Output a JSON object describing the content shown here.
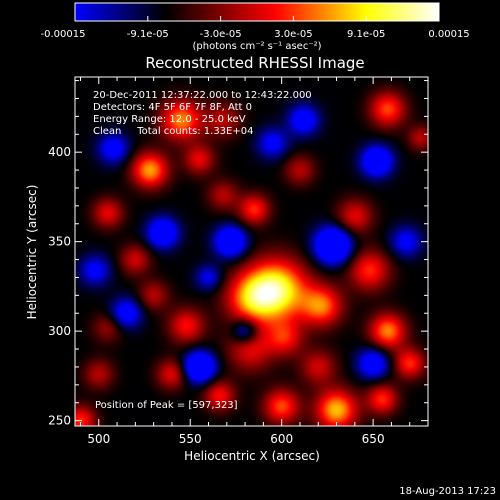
{
  "chart_data": {
    "type": "heatmap",
    "title": "Reconstructed RHESSI Image",
    "xlabel": "Heliocentric X (arcsec)",
    "ylabel": "Heliocentric Y (arcsec)",
    "xlim": [
      487,
      680
    ],
    "ylim": [
      247,
      442
    ],
    "x_ticks": [
      500,
      550,
      600,
      650
    ],
    "y_ticks": [
      250,
      300,
      350,
      400
    ],
    "colorbar": {
      "min": -0.00015,
      "max": 0.00015,
      "tick_labels": [
        "-0.00015",
        "-9.1e-05",
        "-3.0e-05",
        "3.0e-05",
        "9.1e-05",
        "0.00015"
      ],
      "unit_label": "(photons cm⁻² s⁻¹ asec⁻²)",
      "colormap": [
        "#0000ff",
        "#000000",
        "#ff0000",
        "#ffff00",
        "#ffffff"
      ]
    },
    "annotations": {
      "time_range": "20-Dec-2011 12:37:22.000 to 12:43:22.000",
      "detectors": "Detectors: 4F 5F 6F 7F 8F, Att 0",
      "energy": "Energy Range: 12.0 - 25.0 keV",
      "method": "Clean     Total counts: 1.33E+04",
      "peak": "Position of Peak = [597,323]"
    },
    "peak": {
      "x": 597,
      "y": 323
    },
    "sources": [
      {
        "x": 597,
        "y": 323,
        "amp": 1.0,
        "sigma": 12
      },
      {
        "x": 583,
        "y": 318,
        "amp": 0.55,
        "sigma": 10
      },
      {
        "x": 622,
        "y": 314,
        "amp": 0.65,
        "sigma": 8
      },
      {
        "x": 548,
        "y": 303,
        "amp": 0.5,
        "sigma": 7
      },
      {
        "x": 583,
        "y": 290,
        "amp": 0.45,
        "sigma": 9
      },
      {
        "x": 545,
        "y": 418,
        "amp": 0.7,
        "sigma": 8
      },
      {
        "x": 528,
        "y": 390,
        "amp": 0.75,
        "sigma": 7
      },
      {
        "x": 568,
        "y": 418,
        "amp": 0.35,
        "sigma": 7
      },
      {
        "x": 555,
        "y": 396,
        "amp": 0.45,
        "sigma": 6
      },
      {
        "x": 568,
        "y": 376,
        "amp": 0.35,
        "sigma": 6
      },
      {
        "x": 585,
        "y": 368,
        "amp": 0.55,
        "sigma": 6
      },
      {
        "x": 610,
        "y": 390,
        "amp": 0.35,
        "sigma": 6
      },
      {
        "x": 640,
        "y": 364,
        "amp": 0.45,
        "sigma": 7
      },
      {
        "x": 658,
        "y": 424,
        "amp": 0.6,
        "sigma": 7
      },
      {
        "x": 505,
        "y": 366,
        "amp": 0.45,
        "sigma": 6
      },
      {
        "x": 520,
        "y": 340,
        "amp": 0.4,
        "sigma": 6
      },
      {
        "x": 530,
        "y": 320,
        "amp": 0.35,
        "sigma": 6
      },
      {
        "x": 648,
        "y": 334,
        "amp": 0.55,
        "sigma": 8
      },
      {
        "x": 658,
        "y": 300,
        "amp": 0.7,
        "sigma": 7
      },
      {
        "x": 602,
        "y": 296,
        "amp": 0.45,
        "sigma": 7
      },
      {
        "x": 620,
        "y": 280,
        "amp": 0.4,
        "sigma": 7
      },
      {
        "x": 670,
        "y": 282,
        "amp": 0.55,
        "sigma": 6
      },
      {
        "x": 540,
        "y": 276,
        "amp": 0.45,
        "sigma": 6
      },
      {
        "x": 566,
        "y": 264,
        "amp": 0.5,
        "sigma": 6
      },
      {
        "x": 600,
        "y": 258,
        "amp": 0.6,
        "sigma": 7
      },
      {
        "x": 630,
        "y": 256,
        "amp": 0.8,
        "sigma": 8
      },
      {
        "x": 655,
        "y": 262,
        "amp": 0.55,
        "sigma": 6
      },
      {
        "x": 500,
        "y": 276,
        "amp": 0.35,
        "sigma": 6
      },
      {
        "x": 505,
        "y": 302,
        "amp": 0.3,
        "sigma": 6
      },
      {
        "x": 490,
        "y": 250,
        "amp": 0.55,
        "sigma": 6
      },
      {
        "x": 676,
        "y": 408,
        "amp": 0.35,
        "sigma": 5
      },
      {
        "x": 535,
        "y": 355,
        "amp": -0.7,
        "sigma": 6
      },
      {
        "x": 572,
        "y": 350,
        "amp": -0.8,
        "sigma": 6
      },
      {
        "x": 628,
        "y": 348,
        "amp": -0.95,
        "sigma": 7
      },
      {
        "x": 652,
        "y": 395,
        "amp": -0.75,
        "sigma": 6
      },
      {
        "x": 612,
        "y": 418,
        "amp": -0.55,
        "sigma": 6
      },
      {
        "x": 508,
        "y": 402,
        "amp": -0.5,
        "sigma": 6
      },
      {
        "x": 515,
        "y": 310,
        "amp": -0.55,
        "sigma": 6
      },
      {
        "x": 555,
        "y": 280,
        "amp": -0.9,
        "sigma": 6
      },
      {
        "x": 580,
        "y": 300,
        "amp": -0.55,
        "sigma": 5
      },
      {
        "x": 650,
        "y": 282,
        "amp": -0.6,
        "sigma": 6
      },
      {
        "x": 595,
        "y": 405,
        "amp": -0.45,
        "sigma": 6
      },
      {
        "x": 498,
        "y": 334,
        "amp": -0.45,
        "sigma": 6
      },
      {
        "x": 560,
        "y": 330,
        "amp": -0.4,
        "sigma": 5
      },
      {
        "x": 668,
        "y": 350,
        "amp": -0.45,
        "sigma": 6
      }
    ]
  },
  "footer": {
    "timestamp": "18-Aug-2013 17:23"
  }
}
